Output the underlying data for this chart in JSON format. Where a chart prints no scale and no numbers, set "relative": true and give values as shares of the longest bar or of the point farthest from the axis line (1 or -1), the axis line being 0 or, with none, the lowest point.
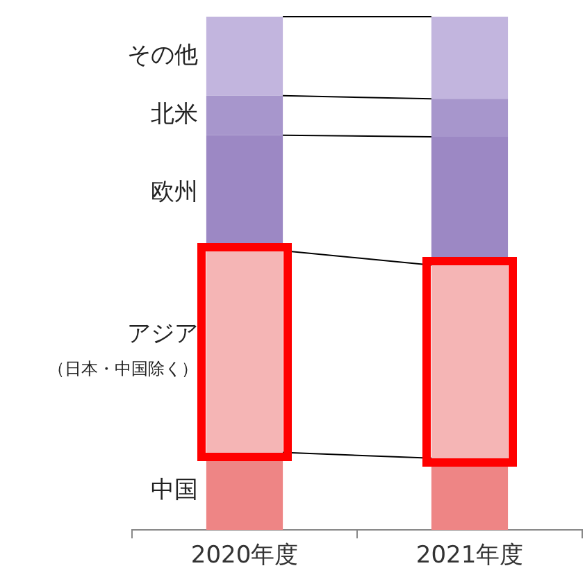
{
  "chart_data": {
    "type": "bar",
    "stacked": true,
    "relative": true,
    "categories": [
      "2020年度",
      "2021年度"
    ],
    "series": [
      {
        "name": "中国",
        "color": "#ee8585",
        "values": [
          0.151,
          0.14
        ]
      },
      {
        "name": "アジア（日本・中国除く）",
        "color": "#f5b5b5",
        "values": [
          0.393,
          0.376
        ]
      },
      {
        "name": "欧州",
        "color": "#9c88c4",
        "values": [
          0.225,
          0.25
        ]
      },
      {
        "name": "北米",
        "color": "#a796cc",
        "values": [
          0.077,
          0.074
        ]
      },
      {
        "name": "その他",
        "color": "#c2b5de",
        "values": [
          0.154,
          0.16
        ]
      }
    ]
  }
}
